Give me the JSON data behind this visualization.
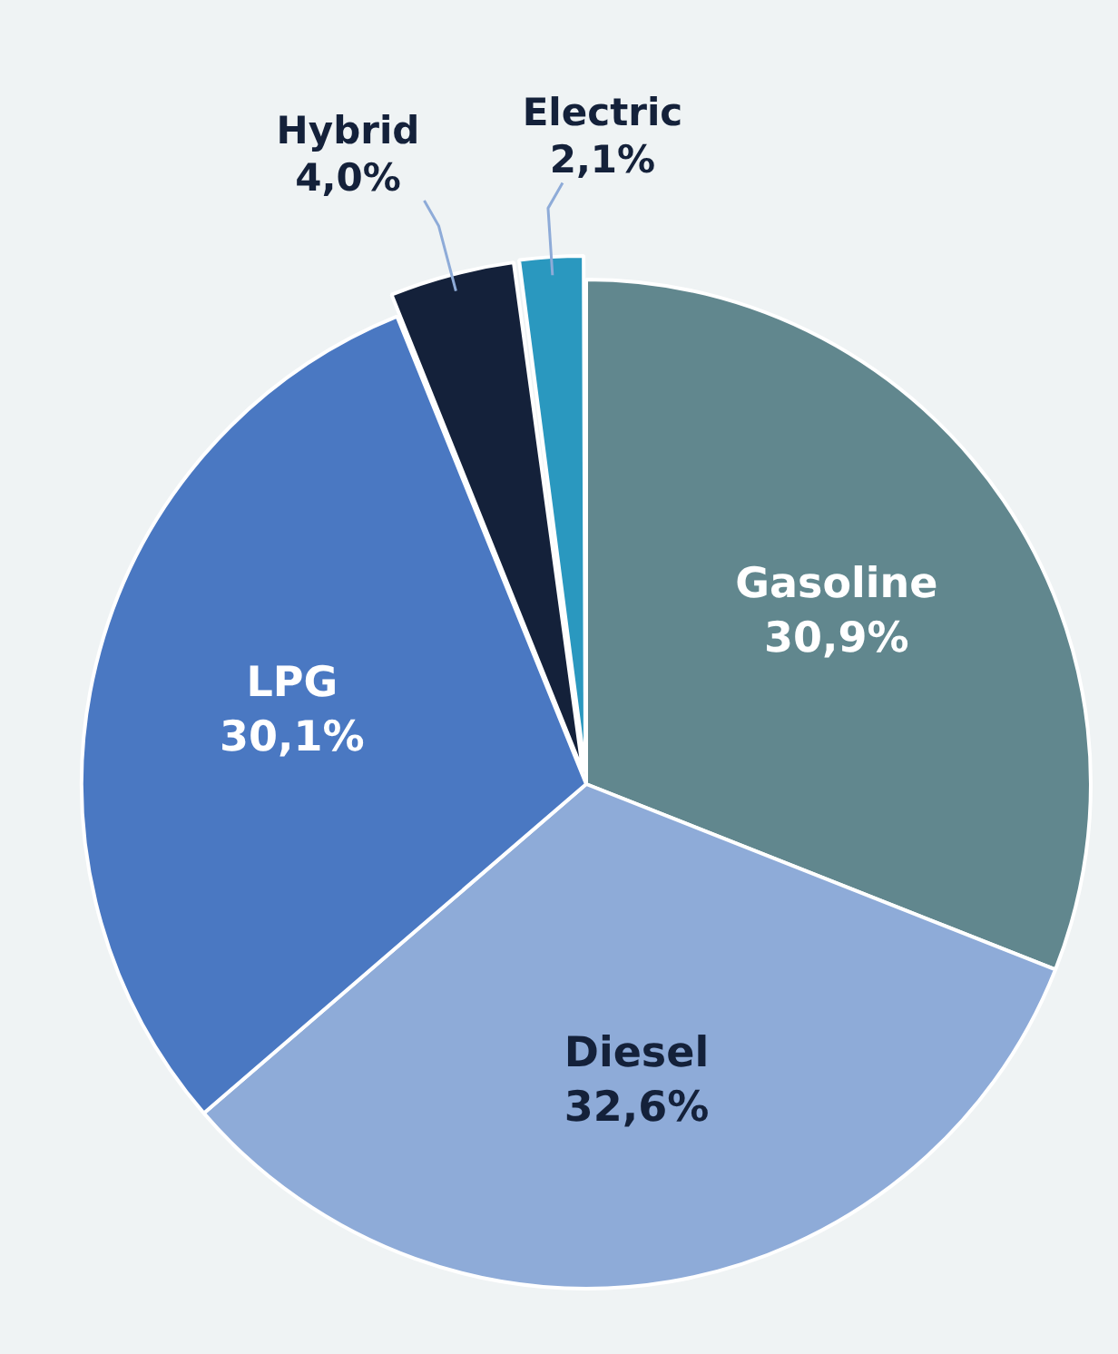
{
  "chart_data": {
    "type": "pie",
    "categories": [
      "Gasoline",
      "Diesel",
      "LPG",
      "Hybrid",
      "Electric"
    ],
    "values": [
      30.9,
      32.6,
      30.1,
      4.0,
      2.1
    ],
    "colors": [
      "#61878e",
      "#8eabd8",
      "#4a78c2",
      "#14213a",
      "#2a98bf"
    ],
    "value_labels": [
      "30,9%",
      "32,6%",
      "30,1%",
      "4,0%",
      "2,1%"
    ],
    "legend": false
  }
}
